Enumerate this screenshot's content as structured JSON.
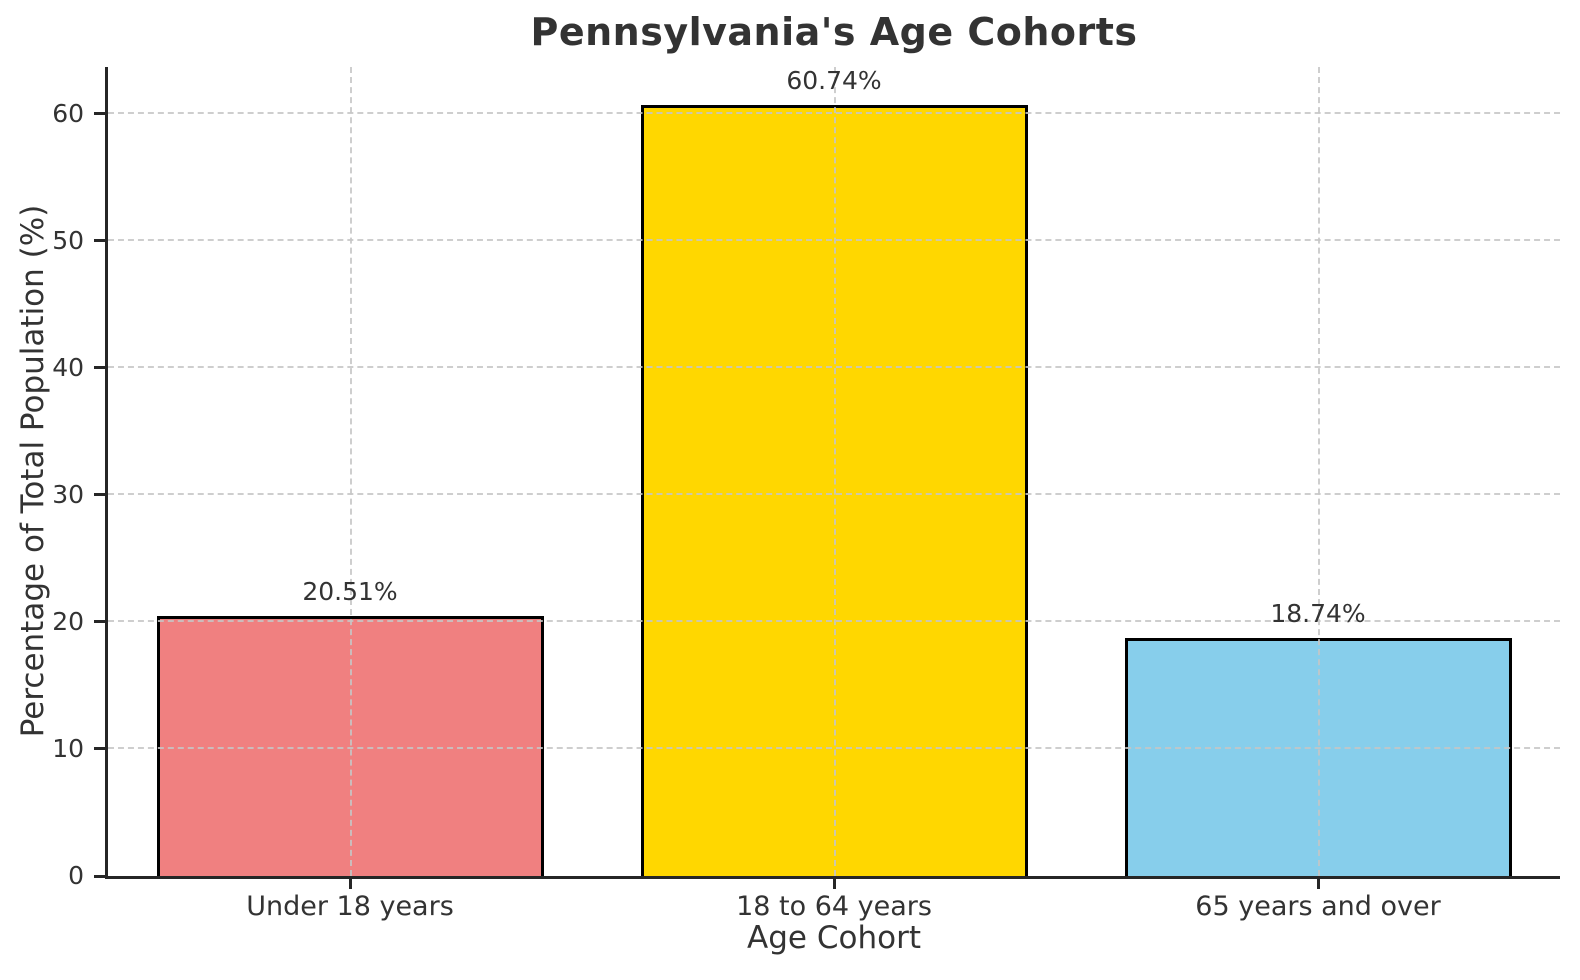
{
  "title": "Pennsylvania's Age Cohorts",
  "chart_data": {
    "type": "bar",
    "title": "Pennsylvania's Age Cohorts",
    "xlabel": "Age Cohort",
    "ylabel": "Percentage of Total Population (%)",
    "categories": [
      "Under 18 years",
      "18 to 64 years",
      "65 years and over"
    ],
    "values": [
      20.51,
      60.74,
      18.74
    ],
    "value_labels": [
      "20.51%",
      "60.74%",
      "18.74%"
    ],
    "bar_colors": [
      "#F08080",
      "#FFD700",
      "#87CEEB"
    ],
    "bar_edge_color": "#000000",
    "yticks": [
      0,
      10,
      20,
      30,
      40,
      50,
      60
    ],
    "ylim": [
      0,
      63.7
    ],
    "grid": "dashed, drawn above bars",
    "grid_color": "#c6c6c6",
    "legend": "none"
  }
}
